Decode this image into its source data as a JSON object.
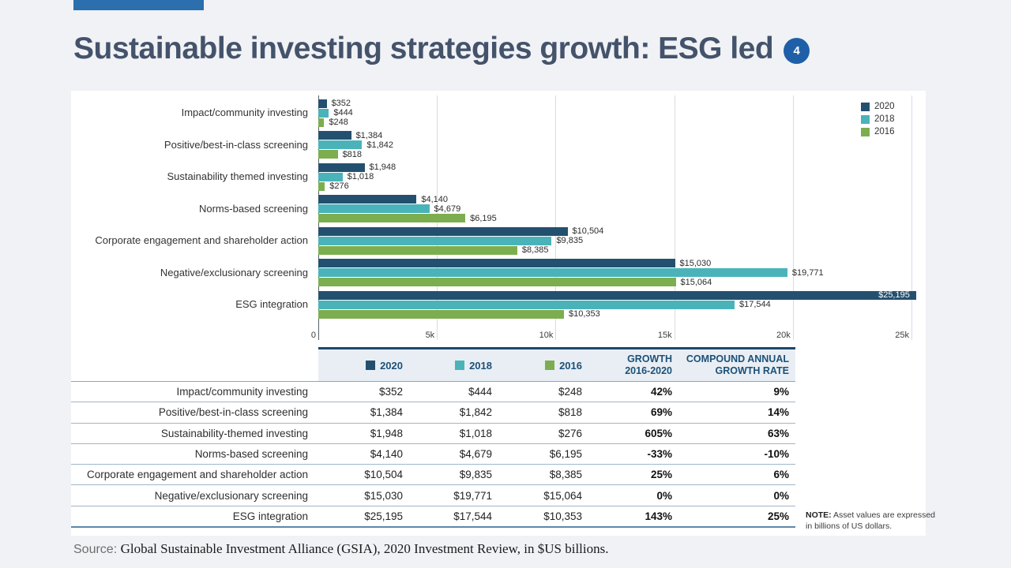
{
  "page": {
    "title": "Sustainable investing strategies growth: ESG led",
    "badge": {
      "text": "4"
    },
    "accent_color": "#2B6FAE",
    "title_color": "#44536B",
    "background": "#F0F2F5"
  },
  "chart_data": {
    "type": "bar",
    "orientation": "horizontal",
    "grouped": true,
    "categories": [
      "Impact/community investing",
      "Positive/best-in-class screening",
      "Sustainability themed investing",
      "Norms-based screening",
      "Corporate engagement and shareholder action",
      "Negative/exclusionary screening",
      "ESG integration"
    ],
    "series": [
      {
        "name": "2020",
        "color": "#24506F",
        "values": [
          352,
          1384,
          1948,
          4140,
          10504,
          15030,
          25195
        ],
        "labels": [
          "$352",
          "$1,384",
          "$1,948",
          "$4,140",
          "$10,504",
          "$15,030",
          "$25,195"
        ]
      },
      {
        "name": "2018",
        "color": "#4AB3BA",
        "values": [
          444,
          1842,
          1018,
          4679,
          9835,
          19771,
          17544
        ],
        "labels": [
          "$444",
          "$1,842",
          "$1,018",
          "$4,679",
          "$9,835",
          "$19,771",
          "$17,544"
        ]
      },
      {
        "name": "2016",
        "color": "#7CAE4F",
        "values": [
          248,
          818,
          276,
          6195,
          8385,
          15064,
          10353
        ],
        "labels": [
          "$248",
          "$818",
          "$276",
          "$6,195",
          "$8,385",
          "$15,064",
          "$10,353"
        ]
      }
    ],
    "xaxis": {
      "max": 25000,
      "ticks": [
        {
          "value": 0,
          "label": "0"
        },
        {
          "value": 5000,
          "label": "5k"
        },
        {
          "value": 10000,
          "label": "10k"
        },
        {
          "value": 15000,
          "label": "15k"
        },
        {
          "value": 20000,
          "label": "20k"
        },
        {
          "value": 25000,
          "label": "25k"
        }
      ]
    },
    "legend": {
      "position": "top-right",
      "items": [
        "2020",
        "2018",
        "2016"
      ]
    },
    "grid": "vertical"
  },
  "table": {
    "header": {
      "col_2020": {
        "label": "2020",
        "swatch": "#24506F"
      },
      "col_2018": {
        "label": "2018",
        "swatch": "#4AB3BA"
      },
      "col_2016": {
        "label": "2016",
        "swatch": "#7CAE4F"
      },
      "growth": {
        "line1": "GROWTH",
        "line2": "2016-2020"
      },
      "cagr": {
        "line1": "COMPOUND ANNUAL",
        "line2": "GROWTH RATE"
      }
    },
    "rows": [
      [
        "Impact/community investing",
        "$352",
        "$444",
        "$248",
        "42%",
        "9%"
      ],
      [
        "Positive/best-in-class screening",
        "$1,384",
        "$1,842",
        "$818",
        "69%",
        "14%"
      ],
      [
        "Sustainability-themed investing",
        "$1,948",
        "$1,018",
        "$276",
        "605%",
        "63%"
      ],
      [
        "Norms-based screening",
        "$4,140",
        "$4,679",
        "$6,195",
        "-33%",
        "-10%"
      ],
      [
        "Corporate engagement and shareholder action",
        "$10,504",
        "$9,835",
        "$8,385",
        "25%",
        "6%"
      ],
      [
        "Negative/exclusionary screening",
        "$15,030",
        "$19,771",
        "$15,064",
        "0%",
        "0%"
      ],
      [
        "ESG integration",
        "$25,195",
        "$17,544",
        "$10,353",
        "143%",
        "25%"
      ]
    ]
  },
  "note": {
    "label": "NOTE:",
    "text": " Asset values are expressed in billions of US dollars."
  },
  "source": {
    "label": "Source: ",
    "text": "Global Sustainable Investment Alliance (GSIA), 2020 Investment Review, in $US billions."
  }
}
